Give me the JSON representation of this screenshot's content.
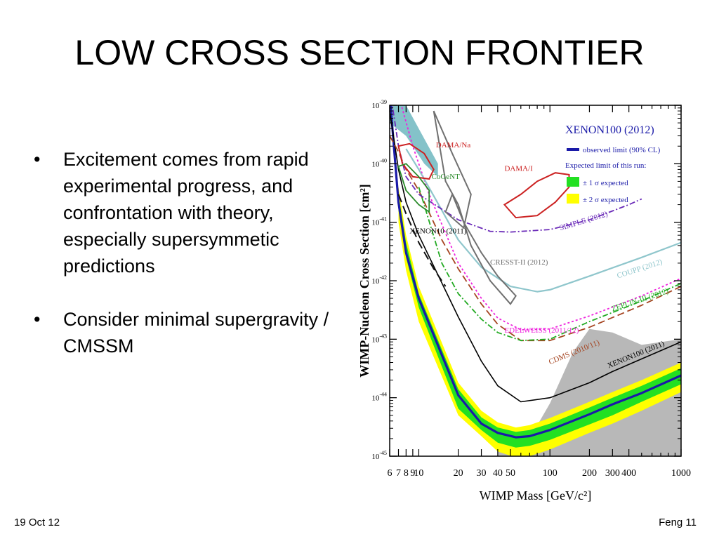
{
  "slide": {
    "title": "LOW CROSS SECTION FRONTIER",
    "bullet_marker": "•",
    "bullets": [
      "Excitement comes from rapid experimental progress, and confrontation with theory, especially supersymmetic predictions",
      "Consider minimal supergravity / CMSSM"
    ],
    "footer_date": "19 Oct 12",
    "footer_page": "Feng 11"
  },
  "chart_data": {
    "type": "line",
    "title": "XENON100 (2012)",
    "xlabel": "WIMP Mass [GeV/c²]",
    "ylabel": "WIMP-Nucleon Cross Section [cm²]",
    "xscale": "log",
    "yscale": "log",
    "xlim": [
      6,
      1000
    ],
    "ylim": [
      1e-45,
      1e-39
    ],
    "x_ticks": [
      6,
      7,
      8,
      9,
      10,
      20,
      30,
      40,
      50,
      100,
      200,
      300,
      400,
      1000
    ],
    "x_tick_labels": [
      "6",
      "7",
      "8",
      "9",
      "10",
      "20",
      "30",
      "40",
      "50",
      "100",
      "200",
      "300",
      "400",
      "1000"
    ],
    "y_ticks": [
      1e-39,
      1e-40,
      1e-41,
      1e-42,
      1e-43,
      1e-44,
      1e-45
    ],
    "y_tick_labels": [
      {
        "base": "10",
        "exp": "-39"
      },
      {
        "base": "10",
        "exp": "-40"
      },
      {
        "base": "10",
        "exp": "-41"
      },
      {
        "base": "10",
        "exp": "-42"
      },
      {
        "base": "10",
        "exp": "-43"
      },
      {
        "base": "10",
        "exp": "-44"
      },
      {
        "base": "10",
        "exp": "-45"
      }
    ],
    "legend": {
      "title": "XENON100 (2012)",
      "observed": "observed limit (90% CL)",
      "expected_header": "Expected limit of this run:",
      "one_sigma": "± 1 σ expected",
      "two_sigma": "± 2 σ expected",
      "placement": "top-right"
    },
    "colors": {
      "observed": "#1a1aa8",
      "one_sigma": "#22e022",
      "two_sigma": "#ffff00",
      "dama": "#cc2222",
      "cogent": "#2a8a2a",
      "simple": "#6a2ab8",
      "cresst": "#707070",
      "coupp": "#8fc6cc",
      "zeplin": "#22aa22",
      "edelweiss": "#ee22dd",
      "cdms": "#a54420",
      "xenon10": "#111111",
      "xenon100_2011": "#000000",
      "theory": "#a0a0a0",
      "dama_fill": "#6fb7c0"
    },
    "series": [
      {
        "name": "XENON100 (2012)",
        "style": "observed",
        "points": [
          [
            6,
            1.5e-39
          ],
          [
            7,
            2.2e-41
          ],
          [
            8,
            3e-42
          ],
          [
            10,
            5e-43
          ],
          [
            20,
            1.1e-44
          ],
          [
            30,
            3.6e-45
          ],
          [
            40,
            2.5e-45
          ],
          [
            55,
            2.1e-45
          ],
          [
            70,
            2.2e-45
          ],
          [
            100,
            2.8e-45
          ],
          [
            200,
            5.2e-45
          ],
          [
            300,
            7.7e-45
          ],
          [
            500,
            1.2e-44
          ],
          [
            1000,
            2.4e-44
          ]
        ]
      },
      {
        "name": "XENON100 (2011)",
        "label": "XENON100 (2011)",
        "style": "xenon100_2011",
        "points": [
          [
            6,
            8e-40
          ],
          [
            7,
            8e-41
          ],
          [
            8,
            2.2e-41
          ],
          [
            10,
            6e-42
          ],
          [
            20,
            2.4e-43
          ],
          [
            30,
            4.2e-44
          ],
          [
            40,
            1.6e-44
          ],
          [
            60,
            8.5e-45
          ],
          [
            100,
            1e-44
          ],
          [
            200,
            1.8e-44
          ],
          [
            300,
            2.8e-44
          ],
          [
            500,
            4.6e-44
          ],
          [
            1000,
            9e-44
          ]
        ]
      },
      {
        "name": "XENON10 (2011)",
        "label": "XENON10 (2011)",
        "style": "xenon10",
        "points": [
          [
            7,
            3e-41
          ],
          [
            8,
            1.4e-41
          ],
          [
            10,
            4.5e-42
          ],
          [
            13,
            1.6e-42
          ],
          [
            16,
            8e-43
          ]
        ]
      },
      {
        "name": "CDMS (2010/11)",
        "label": "CDMS (2010/11)",
        "style": "cdms",
        "points": [
          [
            6,
            3e-40
          ],
          [
            7,
            1.6e-40
          ],
          [
            8,
            8e-41
          ],
          [
            10,
            3.5e-41
          ],
          [
            15,
            5e-42
          ],
          [
            20,
            1.6e-42
          ],
          [
            30,
            4e-43
          ],
          [
            40,
            1.8e-43
          ],
          [
            60,
            9.5e-44
          ],
          [
            100,
            9.5e-44
          ],
          [
            200,
            1.6e-43
          ],
          [
            500,
            3.8e-43
          ],
          [
            1000,
            8e-43
          ]
        ]
      },
      {
        "name": "EDELWEISS (2011/12)",
        "label": "EDELWEISS (2011/12)",
        "style": "edelweiss",
        "points": [
          [
            7,
            1.5e-39
          ],
          [
            9,
            2e-40
          ],
          [
            12,
            3e-41
          ],
          [
            20,
            2e-42
          ],
          [
            30,
            5e-43
          ],
          [
            40,
            2.3e-43
          ],
          [
            60,
            1.45e-43
          ],
          [
            100,
            1.5e-43
          ],
          [
            200,
            2.5e-43
          ],
          [
            500,
            5.5e-43
          ],
          [
            1000,
            1.1e-42
          ]
        ]
      },
      {
        "name": "ZEPLIN-III (2012)",
        "label": "ZEPLIN-III (2012)",
        "style": "zeplin",
        "points": [
          [
            10,
            4e-41
          ],
          [
            15,
            2e-42
          ],
          [
            20,
            6e-43
          ],
          [
            30,
            2.2e-43
          ],
          [
            40,
            1.3e-43
          ],
          [
            60,
            9.5e-44
          ],
          [
            100,
            1e-43
          ],
          [
            200,
            2e-43
          ],
          [
            500,
            4.5e-43
          ],
          [
            1000,
            9e-43
          ]
        ]
      },
      {
        "name": "COUPP (2012)",
        "label": "COUPP (2012)",
        "style": "coupp",
        "points": [
          [
            8,
            1.8e-40
          ],
          [
            10,
            8e-41
          ],
          [
            15,
            1.6e-41
          ],
          [
            20,
            5e-42
          ],
          [
            30,
            1.7e-42
          ],
          [
            50,
            8e-43
          ],
          [
            80,
            6.5e-43
          ],
          [
            100,
            7e-43
          ],
          [
            200,
            1.2e-42
          ],
          [
            500,
            2.5e-42
          ],
          [
            1000,
            4.5e-42
          ]
        ]
      },
      {
        "name": "SIMPLE (2012)",
        "label": "SIMPLE (2012)",
        "style": "simple",
        "points": [
          [
            6,
            2e-39
          ],
          [
            7,
            2e-40
          ],
          [
            8,
            6e-41
          ],
          [
            10,
            3e-41
          ],
          [
            20,
            1.1e-41
          ],
          [
            35,
            7e-42
          ],
          [
            50,
            6.8e-42
          ],
          [
            100,
            7.5e-42
          ],
          [
            200,
            1.1e-41
          ],
          [
            400,
            2e-41
          ],
          [
            500,
            2.5e-41
          ]
        ]
      },
      {
        "name": "Theory region",
        "style": "theory",
        "points": [
          [
            40,
            2e-45
          ],
          [
            55,
            1e-45
          ],
          [
            70,
            2e-45
          ],
          [
            100,
            8e-45
          ],
          [
            150,
            6e-44
          ],
          [
            200,
            1.5e-43
          ],
          [
            300,
            1.3e-43
          ],
          [
            500,
            8e-44
          ],
          [
            1000,
            1e-43
          ],
          [
            1000,
            1e-45
          ],
          [
            40,
            1e-45
          ]
        ]
      }
    ],
    "bands": [
      {
        "name": "± 2 σ expected",
        "style": "two_sigma",
        "points": [
          [
            7,
            4e-41
          ],
          [
            8,
            6e-42
          ],
          [
            10,
            8e-43
          ],
          [
            20,
            1.8e-44
          ],
          [
            30,
            6e-45
          ],
          [
            40,
            3.8e-45
          ],
          [
            55,
            3.1e-45
          ],
          [
            70,
            3.4e-45
          ],
          [
            100,
            4.5e-45
          ],
          [
            200,
            8.5e-45
          ],
          [
            300,
            1.25e-44
          ],
          [
            500,
            2e-44
          ],
          [
            1000,
            4e-44
          ],
          [
            1000,
            1.25e-44
          ],
          [
            500,
            6e-45
          ],
          [
            300,
            3.6e-45
          ],
          [
            200,
            2.5e-45
          ],
          [
            100,
            1.3e-45
          ],
          [
            70,
            1e-45
          ],
          [
            55,
            9.5e-46
          ],
          [
            40,
            1.2e-45
          ],
          [
            30,
            2.2e-45
          ],
          [
            20,
            5e-45
          ],
          [
            10,
            2e-43
          ],
          [
            8,
            1.5e-42
          ],
          [
            7,
            1e-41
          ]
        ]
      },
      {
        "name": "± 1 σ expected",
        "style": "one_sigma",
        "points": [
          [
            7,
            3e-41
          ],
          [
            8,
            4.5e-42
          ],
          [
            10,
            6e-43
          ],
          [
            20,
            1.4e-44
          ],
          [
            30,
            4.6e-45
          ],
          [
            40,
            3.1e-45
          ],
          [
            55,
            2.6e-45
          ],
          [
            70,
            2.8e-45
          ],
          [
            100,
            3.6e-45
          ],
          [
            200,
            6.8e-45
          ],
          [
            300,
            1e-44
          ],
          [
            500,
            1.6e-44
          ],
          [
            1000,
            3.2e-44
          ],
          [
            1000,
            1.7e-44
          ],
          [
            500,
            8.5e-45
          ],
          [
            300,
            5e-45
          ],
          [
            200,
            3.5e-45
          ],
          [
            100,
            1.9e-45
          ],
          [
            70,
            1.5e-45
          ],
          [
            55,
            1.4e-45
          ],
          [
            40,
            1.7e-45
          ],
          [
            30,
            2.8e-45
          ],
          [
            20,
            6.5e-45
          ],
          [
            10,
            3.5e-43
          ],
          [
            8,
            2.5e-42
          ],
          [
            7,
            1.6e-41
          ]
        ]
      }
    ],
    "regions": [
      {
        "name": "DAMA/Na",
        "label": "DAMA/Na",
        "style": "dama",
        "points": [
          [
            7,
            2e-40
          ],
          [
            7.5,
            1e-40
          ],
          [
            9,
            6e-41
          ],
          [
            12,
            5.5e-41
          ],
          [
            13,
            8e-41
          ],
          [
            11,
            1.5e-40
          ],
          [
            8.5,
            2.2e-40
          ]
        ]
      },
      {
        "name": "DAMA/I",
        "label": "DAMA/I",
        "style": "dama",
        "points": [
          [
            45,
            2e-41
          ],
          [
            55,
            1.2e-41
          ],
          [
            80,
            1.3e-41
          ],
          [
            110,
            2.2e-41
          ],
          [
            140,
            4e-41
          ],
          [
            140,
            6.5e-41
          ],
          [
            110,
            7e-41
          ],
          [
            80,
            5e-41
          ],
          [
            60,
            3e-41
          ]
        ]
      },
      {
        "name": "CoGeNT",
        "label": "CoGeNT",
        "style": "cogent",
        "points": [
          [
            7,
            9e-41
          ],
          [
            8,
            1e-40
          ],
          [
            10,
            6e-41
          ],
          [
            12,
            3.5e-41
          ],
          [
            12,
            1.5e-41
          ],
          [
            10,
            2e-41
          ],
          [
            8,
            3.5e-41
          ]
        ]
      },
      {
        "name": "CRESST-II (2012)",
        "label": "CRESST-II (2012)",
        "style": "cresst",
        "points": [
          [
            13,
            8e-40
          ],
          [
            16,
            5e-41
          ],
          [
            20,
            2e-41
          ],
          [
            25,
            4e-42
          ],
          [
            35,
            1e-42
          ],
          [
            50,
            4e-43
          ],
          [
            55,
            5.5e-43
          ],
          [
            40,
            1.2e-42
          ],
          [
            30,
            3e-42
          ],
          [
            22,
            1e-41
          ],
          [
            18,
            3e-41
          ],
          [
            16,
            1.5e-41
          ],
          [
            22,
            8e-42
          ],
          [
            25,
            3e-41
          ],
          [
            18,
            1.5e-40
          ]
        ]
      },
      {
        "name": "DAMA channeling",
        "style": "dama_fill",
        "points": [
          [
            6,
            1e-39
          ],
          [
            8,
            1e-39
          ],
          [
            10,
            4e-40
          ],
          [
            14,
            1e-40
          ],
          [
            14,
            6e-41
          ],
          [
            11,
            1e-40
          ],
          [
            8,
            3e-40
          ],
          [
            6,
            5e-40
          ]
        ]
      }
    ]
  }
}
